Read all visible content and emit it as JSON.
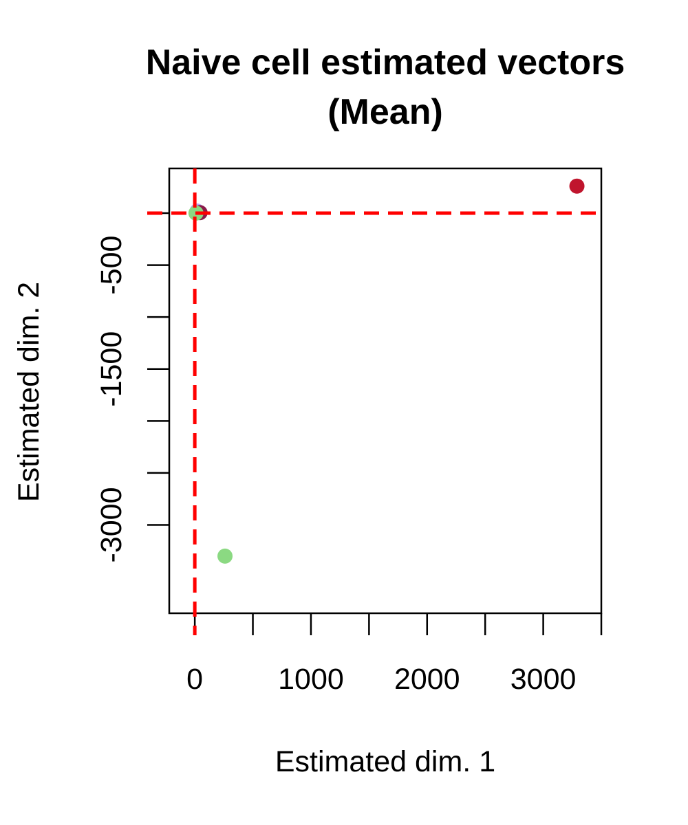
{
  "chart_data": {
    "type": "scatter",
    "title": [
      "Naive cell estimated vectors",
      "(Mean)"
    ],
    "xlabel": "Estimated dim. 1",
    "ylabel": "Estimated dim. 2",
    "xlim": [
      -220,
      3500
    ],
    "ylim": [
      -3850,
      430
    ],
    "x_ticks": [
      0,
      500,
      1000,
      1500,
      2000,
      2500,
      3000,
      3500
    ],
    "x_tick_labels": [
      "0",
      "",
      "1000",
      "",
      "2000",
      "",
      "3000",
      ""
    ],
    "y_ticks": [
      -3000,
      -2500,
      -2000,
      -1500,
      -1000,
      -500,
      0
    ],
    "y_tick_labels": [
      "-3000",
      "",
      "",
      "-1500",
      "",
      "-500",
      ""
    ],
    "grid": false,
    "legend": "none",
    "reference_lines": {
      "color": "#ff0000",
      "style": "dashed",
      "horizontal_y": 0,
      "vertical_x": 0
    },
    "points": [
      {
        "x": 3290,
        "y": 260,
        "color": "#c0152d"
      },
      {
        "x": 20,
        "y": 20,
        "color": "#b3a6f2"
      },
      {
        "x": 45,
        "y": 5,
        "color": "#8b1a4a"
      },
      {
        "x": 10,
        "y": 0,
        "color": "#8bd982"
      },
      {
        "x": 260,
        "y": -3300,
        "color": "#8bd982"
      }
    ]
  }
}
